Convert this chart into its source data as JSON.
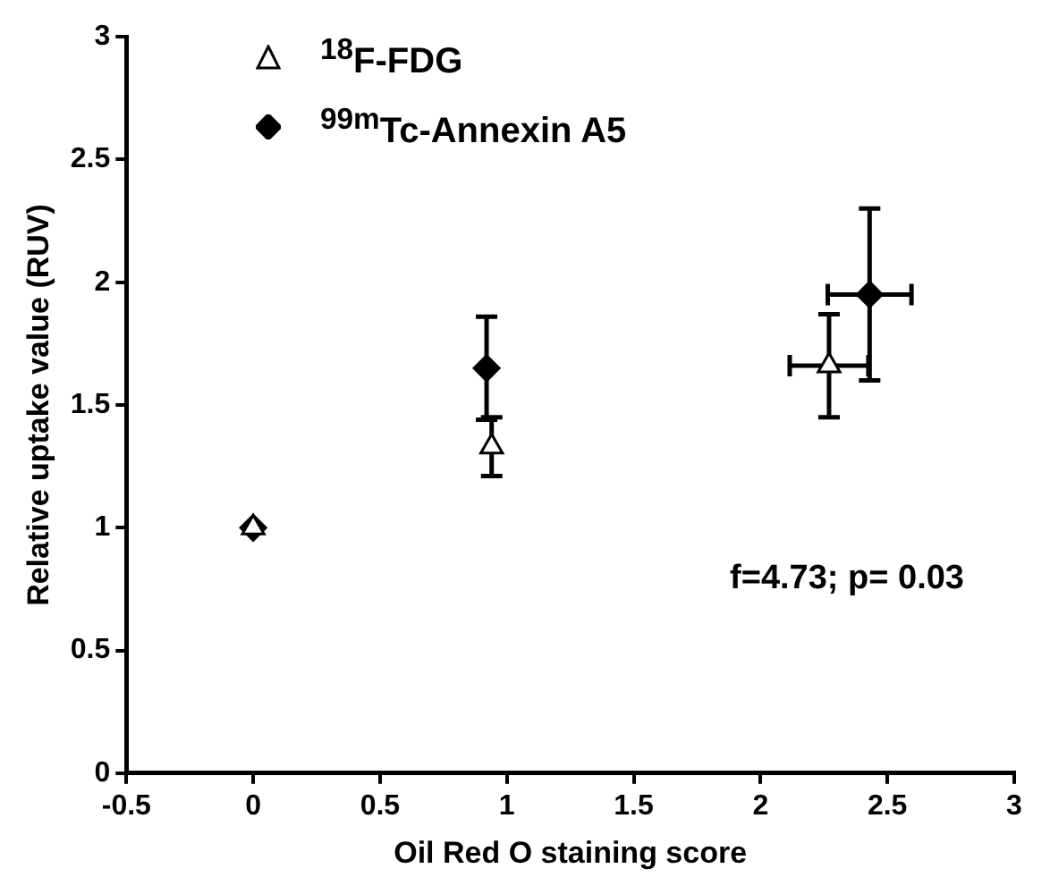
{
  "chart_data": {
    "type": "scatter",
    "xlabel": "Oil Red O staining score",
    "ylabel": "Relative uptake value (RUV)",
    "xlim": [
      -0.5,
      3
    ],
    "xticks": [
      -0.5,
      0,
      0.5,
      1,
      1.5,
      2,
      2.5,
      3
    ],
    "ylim": [
      0,
      3
    ],
    "yticks": [
      0,
      0.5,
      1,
      1.5,
      2,
      2.5,
      3
    ],
    "grid": false,
    "legend": "top left",
    "annotations": [
      "f=4.73; p= 0.03"
    ],
    "series": [
      {
        "name": "$^{18}$F-FDG",
        "color": "#ffffff",
        "marker": "triangle",
        "x": [
          0,
          0.94,
          2.27
        ],
        "values": [
          1.0,
          1.33,
          1.66
        ],
        "errors": [
          null,
          0.12,
          0.21
        ],
        "xerrors": [
          null,
          null,
          0.155
        ]
      },
      {
        "name": "$^{99m}$Tc-Annexin A5",
        "color": "#000000",
        "marker": "diamond",
        "x": [
          0,
          0.92,
          2.43
        ],
        "values": [
          1.0,
          1.65,
          1.95
        ],
        "errors": [
          null,
          0.21,
          0.35
        ],
        "xerrors": [
          null,
          null,
          0.165
        ]
      }
    ]
  }
}
